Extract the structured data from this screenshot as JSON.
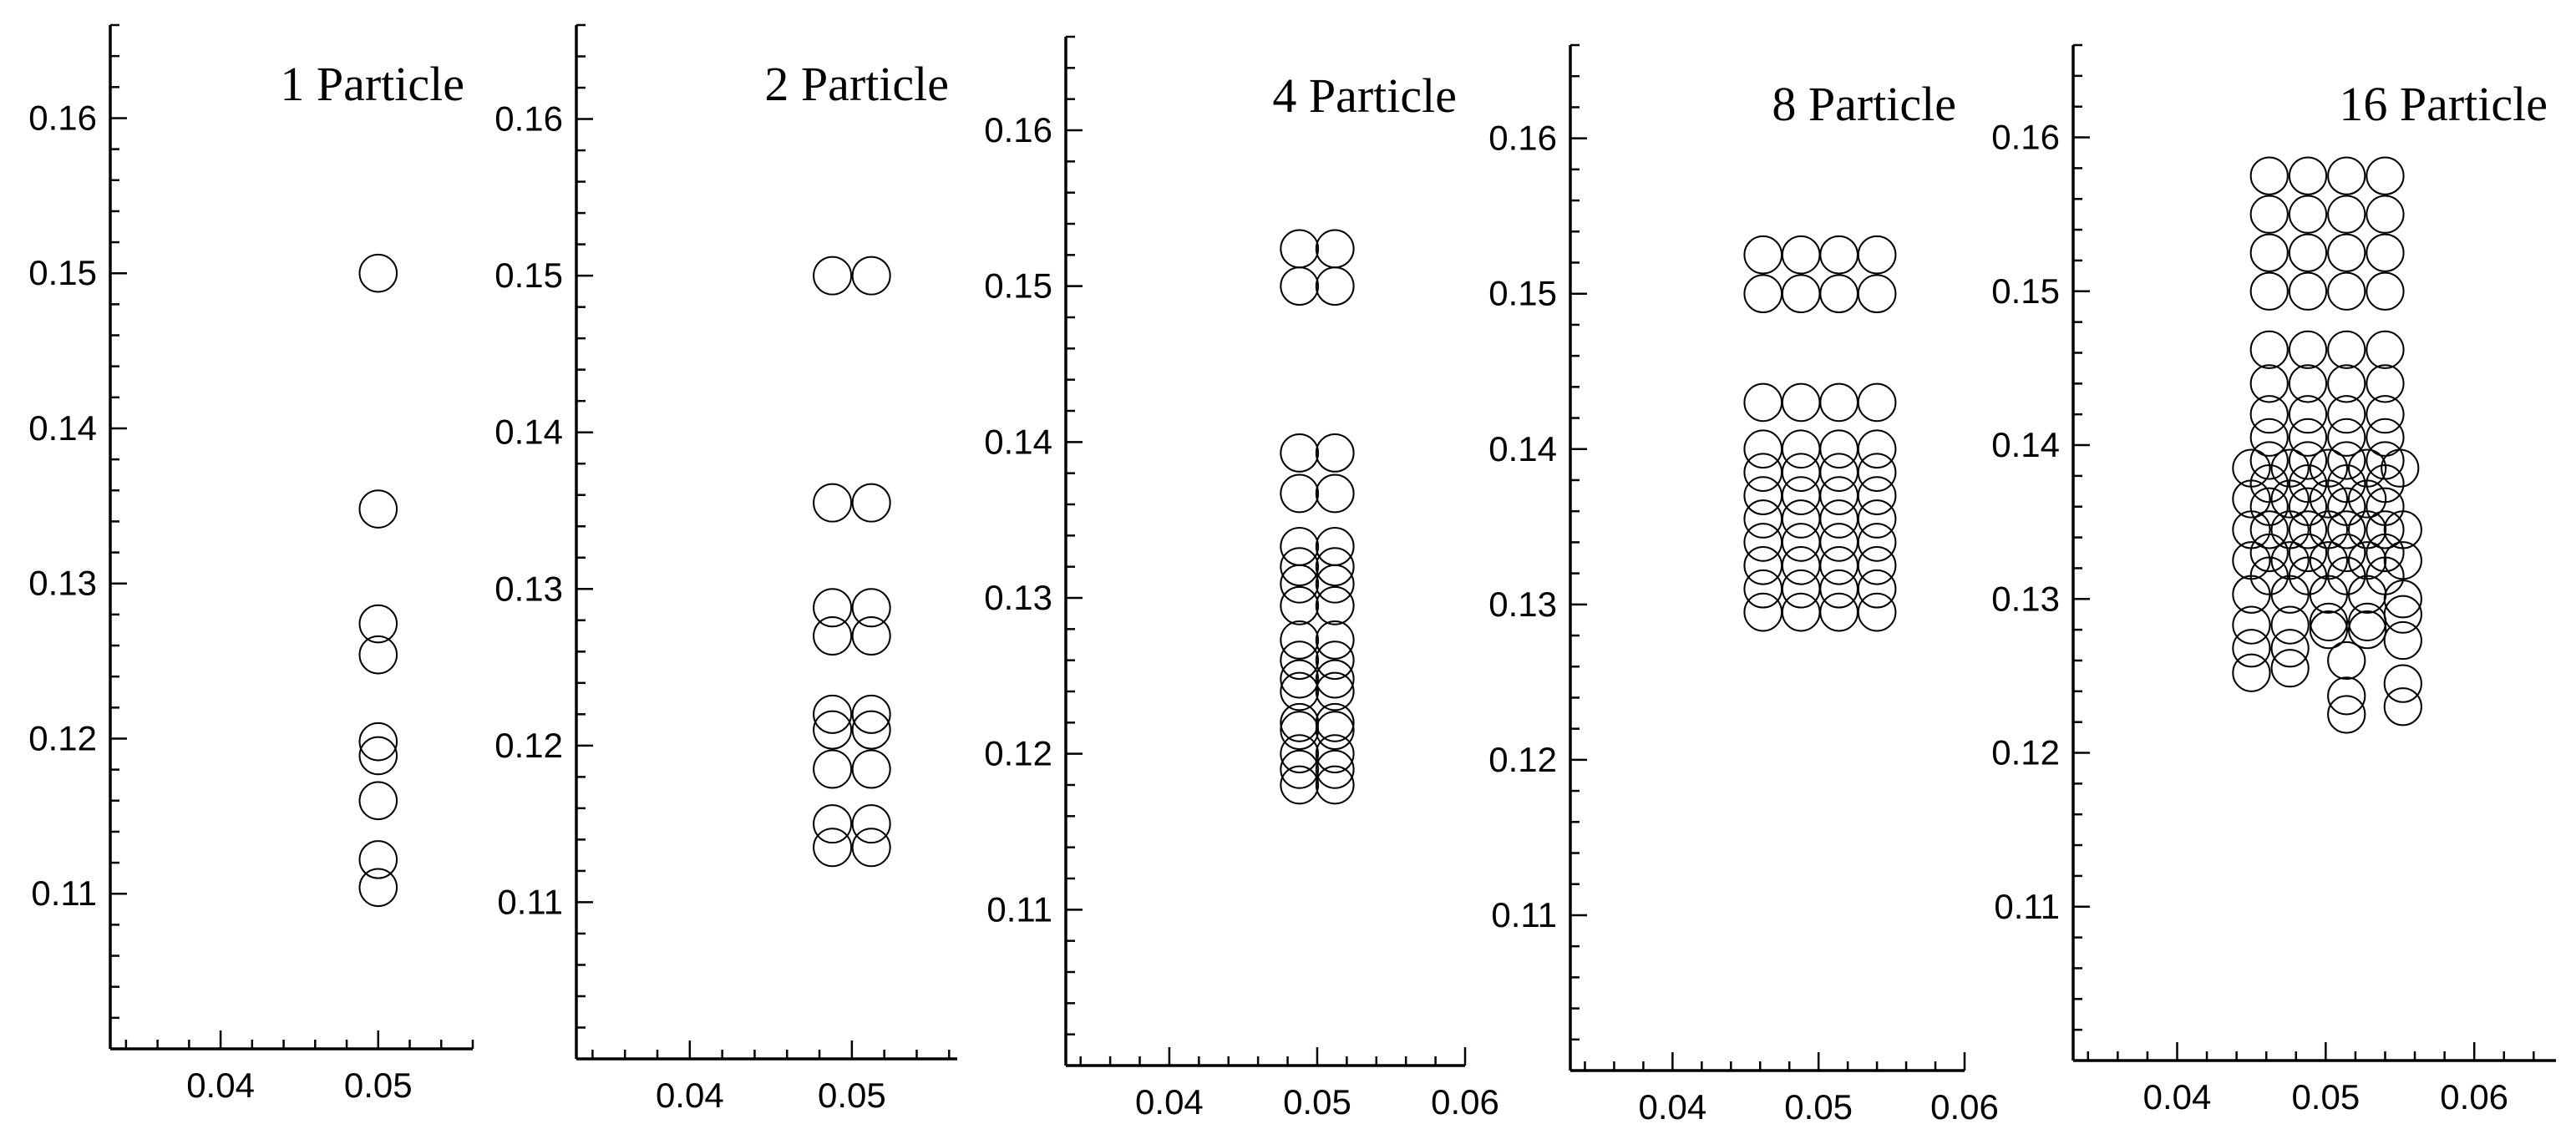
{
  "chart_data": [
    {
      "type": "scatter",
      "title": "1 Particle",
      "xlim": [
        0.033,
        0.056
      ],
      "ylim": [
        0.1,
        0.166
      ],
      "xticks": [
        "0.04",
        "0.05"
      ],
      "yticks": [
        "0.11",
        "0.12",
        "0.13",
        "0.14",
        "0.15",
        "0.16"
      ],
      "particle_diameter": 0.0024,
      "points": [
        [
          0.05,
          0.15
        ],
        [
          0.05,
          0.1348
        ],
        [
          0.05,
          0.1274
        ],
        [
          0.05,
          0.1254
        ],
        [
          0.05,
          0.1198
        ],
        [
          0.05,
          0.1189
        ],
        [
          0.05,
          0.116
        ],
        [
          0.05,
          0.1122
        ],
        [
          0.05,
          0.1104
        ]
      ]
    },
    {
      "type": "scatter",
      "title": "2 Particle",
      "xlim": [
        0.033,
        0.0565
      ],
      "ylim": [
        0.1,
        0.166
      ],
      "xticks": [
        "0.04",
        "0.05"
      ],
      "yticks": [
        "0.11",
        "0.12",
        "0.13",
        "0.14",
        "0.15",
        "0.16"
      ],
      "particle_diameter": 0.0024,
      "points": [
        [
          0.0488,
          0.15
        ],
        [
          0.0512,
          0.15
        ],
        [
          0.0488,
          0.1355
        ],
        [
          0.0512,
          0.1355
        ],
        [
          0.0488,
          0.1288
        ],
        [
          0.0512,
          0.1288
        ],
        [
          0.0488,
          0.127
        ],
        [
          0.0512,
          0.127
        ],
        [
          0.0488,
          0.122
        ],
        [
          0.0512,
          0.122
        ],
        [
          0.0488,
          0.121
        ],
        [
          0.0512,
          0.121
        ],
        [
          0.0488,
          0.1185
        ],
        [
          0.0512,
          0.1185
        ],
        [
          0.0488,
          0.115
        ],
        [
          0.0512,
          0.115
        ],
        [
          0.0488,
          0.1135
        ],
        [
          0.0512,
          0.1135
        ]
      ]
    },
    {
      "type": "scatter",
      "title": "4 Particle",
      "xlim": [
        0.033,
        0.06
      ],
      "ylim": [
        0.1,
        0.166
      ],
      "xticks": [
        "0.04",
        "0.05",
        "0.06"
      ],
      "yticks": [
        "0.11",
        "0.12",
        "0.13",
        "0.14",
        "0.15",
        "0.16"
      ],
      "particle_diameter": 0.0024,
      "points": [
        [
          0.0488,
          0.1524
        ],
        [
          0.0512,
          0.1524
        ],
        [
          0.0488,
          0.15
        ],
        [
          0.0512,
          0.15
        ],
        [
          0.0488,
          0.1393
        ],
        [
          0.0512,
          0.1393
        ],
        [
          0.0488,
          0.1367
        ],
        [
          0.0512,
          0.1367
        ],
        [
          0.0488,
          0.1333
        ],
        [
          0.0512,
          0.1333
        ],
        [
          0.0488,
          0.132
        ],
        [
          0.0512,
          0.132
        ],
        [
          0.0488,
          0.1309
        ],
        [
          0.0512,
          0.1309
        ],
        [
          0.0488,
          0.1295
        ],
        [
          0.0512,
          0.1295
        ],
        [
          0.0488,
          0.1273
        ],
        [
          0.0512,
          0.1273
        ],
        [
          0.0488,
          0.126
        ],
        [
          0.0512,
          0.126
        ],
        [
          0.0488,
          0.1248
        ],
        [
          0.0512,
          0.1248
        ],
        [
          0.0488,
          0.124
        ],
        [
          0.0512,
          0.124
        ],
        [
          0.0488,
          0.122
        ],
        [
          0.0512,
          0.122
        ],
        [
          0.0488,
          0.1215
        ],
        [
          0.0512,
          0.1215
        ],
        [
          0.0488,
          0.12
        ],
        [
          0.0512,
          0.12
        ],
        [
          0.0488,
          0.119
        ],
        [
          0.0512,
          0.119
        ],
        [
          0.0488,
          0.118
        ],
        [
          0.0512,
          0.118
        ]
      ]
    },
    {
      "type": "scatter",
      "title": "8 Particle",
      "xlim": [
        0.033,
        0.06
      ],
      "ylim": [
        0.1,
        0.166
      ],
      "xticks": [
        "0.04",
        "0.05",
        "0.06"
      ],
      "yticks": [
        "0.11",
        "0.12",
        "0.13",
        "0.14",
        "0.15",
        "0.16"
      ],
      "particle_diameter": 0.0024,
      "points": [
        [
          0.0462,
          0.1525
        ],
        [
          0.0488,
          0.1525
        ],
        [
          0.0514,
          0.1525
        ],
        [
          0.054,
          0.1525
        ],
        [
          0.0462,
          0.15
        ],
        [
          0.0488,
          0.15
        ],
        [
          0.0514,
          0.15
        ],
        [
          0.054,
          0.15
        ],
        [
          0.0462,
          0.143
        ],
        [
          0.0488,
          0.143
        ],
        [
          0.0514,
          0.143
        ],
        [
          0.054,
          0.143
        ],
        [
          0.0462,
          0.14
        ],
        [
          0.0488,
          0.14
        ],
        [
          0.0514,
          0.14
        ],
        [
          0.054,
          0.14
        ],
        [
          0.0462,
          0.1385
        ],
        [
          0.0488,
          0.1385
        ],
        [
          0.0514,
          0.1385
        ],
        [
          0.054,
          0.1385
        ],
        [
          0.0462,
          0.137
        ],
        [
          0.0488,
          0.137
        ],
        [
          0.0514,
          0.137
        ],
        [
          0.054,
          0.137
        ],
        [
          0.0462,
          0.1355
        ],
        [
          0.0488,
          0.1355
        ],
        [
          0.0514,
          0.1355
        ],
        [
          0.054,
          0.1355
        ],
        [
          0.0462,
          0.134
        ],
        [
          0.0488,
          0.134
        ],
        [
          0.0514,
          0.134
        ],
        [
          0.054,
          0.134
        ],
        [
          0.0462,
          0.1325
        ],
        [
          0.0488,
          0.1325
        ],
        [
          0.0514,
          0.1325
        ],
        [
          0.054,
          0.1325
        ],
        [
          0.0462,
          0.131
        ],
        [
          0.0488,
          0.131
        ],
        [
          0.0514,
          0.131
        ],
        [
          0.054,
          0.131
        ],
        [
          0.0462,
          0.1295
        ],
        [
          0.0488,
          0.1295
        ],
        [
          0.0514,
          0.1295
        ],
        [
          0.054,
          0.1295
        ]
      ]
    },
    {
      "type": "scatter",
      "title": "16 Particle",
      "xlim": [
        0.033,
        0.0655
      ],
      "ylim": [
        0.1,
        0.166
      ],
      "xticks": [
        "0.04",
        "0.05",
        "0.06"
      ],
      "yticks": [
        "0.11",
        "0.12",
        "0.13",
        "0.14",
        "0.15",
        "0.16"
      ],
      "particle_diameter": 0.0024,
      "points": [
        [
          0.0462,
          0.1575
        ],
        [
          0.0488,
          0.1575
        ],
        [
          0.0514,
          0.1575
        ],
        [
          0.054,
          0.1575
        ],
        [
          0.0462,
          0.155
        ],
        [
          0.0488,
          0.155
        ],
        [
          0.0514,
          0.155
        ],
        [
          0.054,
          0.155
        ],
        [
          0.0462,
          0.1525
        ],
        [
          0.0488,
          0.1525
        ],
        [
          0.0514,
          0.1525
        ],
        [
          0.054,
          0.1525
        ],
        [
          0.0462,
          0.15
        ],
        [
          0.0488,
          0.15
        ],
        [
          0.0514,
          0.15
        ],
        [
          0.054,
          0.15
        ],
        [
          0.0462,
          0.1462
        ],
        [
          0.0488,
          0.1462
        ],
        [
          0.0514,
          0.1462
        ],
        [
          0.054,
          0.1462
        ],
        [
          0.0462,
          0.144
        ],
        [
          0.0488,
          0.144
        ],
        [
          0.0514,
          0.144
        ],
        [
          0.054,
          0.144
        ],
        [
          0.0462,
          0.142
        ],
        [
          0.0488,
          0.142
        ],
        [
          0.0514,
          0.142
        ],
        [
          0.054,
          0.142
        ],
        [
          0.0462,
          0.1405
        ],
        [
          0.0488,
          0.1405
        ],
        [
          0.0514,
          0.1405
        ],
        [
          0.054,
          0.1405
        ],
        [
          0.0462,
          0.139
        ],
        [
          0.0488,
          0.139
        ],
        [
          0.0514,
          0.139
        ],
        [
          0.054,
          0.139
        ],
        [
          0.0462,
          0.1375
        ],
        [
          0.0488,
          0.1375
        ],
        [
          0.0514,
          0.1375
        ],
        [
          0.054,
          0.1375
        ],
        [
          0.0462,
          0.136
        ],
        [
          0.0488,
          0.136
        ],
        [
          0.0514,
          0.136
        ],
        [
          0.054,
          0.136
        ],
        [
          0.0462,
          0.1345
        ],
        [
          0.0488,
          0.1345
        ],
        [
          0.0514,
          0.1345
        ],
        [
          0.054,
          0.1345
        ],
        [
          0.0462,
          0.133
        ],
        [
          0.0488,
          0.133
        ],
        [
          0.0514,
          0.133
        ],
        [
          0.054,
          0.133
        ],
        [
          0.0462,
          0.1315
        ],
        [
          0.0488,
          0.1315
        ],
        [
          0.0514,
          0.1315
        ],
        [
          0.054,
          0.1315
        ],
        [
          0.045,
          0.1385
        ],
        [
          0.0476,
          0.1385
        ],
        [
          0.0502,
          0.1385
        ],
        [
          0.0528,
          0.1385
        ],
        [
          0.055,
          0.1385
        ],
        [
          0.045,
          0.1365
        ],
        [
          0.0476,
          0.1365
        ],
        [
          0.0502,
          0.1365
        ],
        [
          0.0528,
          0.1365
        ],
        [
          0.045,
          0.1345
        ],
        [
          0.0476,
          0.1345
        ],
        [
          0.0502,
          0.1345
        ],
        [
          0.0528,
          0.1345
        ],
        [
          0.0552,
          0.1345
        ],
        [
          0.045,
          0.1325
        ],
        [
          0.0476,
          0.1325
        ],
        [
          0.0502,
          0.1325
        ],
        [
          0.0528,
          0.1325
        ],
        [
          0.0552,
          0.1325
        ],
        [
          0.045,
          0.1303
        ],
        [
          0.0476,
          0.1303
        ],
        [
          0.0502,
          0.1303
        ],
        [
          0.0528,
          0.1303
        ],
        [
          0.0552,
          0.13
        ],
        [
          0.045,
          0.1283
        ],
        [
          0.0476,
          0.1283
        ],
        [
          0.0502,
          0.1285
        ],
        [
          0.0528,
          0.1285
        ],
        [
          0.0552,
          0.129
        ],
        [
          0.045,
          0.1268
        ],
        [
          0.0476,
          0.1268
        ],
        [
          0.0502,
          0.128
        ],
        [
          0.0528,
          0.128
        ],
        [
          0.045,
          0.1252
        ],
        [
          0.0476,
          0.1255
        ],
        [
          0.0552,
          0.1273
        ],
        [
          0.0552,
          0.1245
        ],
        [
          0.0552,
          0.123
        ],
        [
          0.0514,
          0.126
        ],
        [
          0.0514,
          0.1237
        ],
        [
          0.0514,
          0.1225
        ]
      ]
    }
  ]
}
